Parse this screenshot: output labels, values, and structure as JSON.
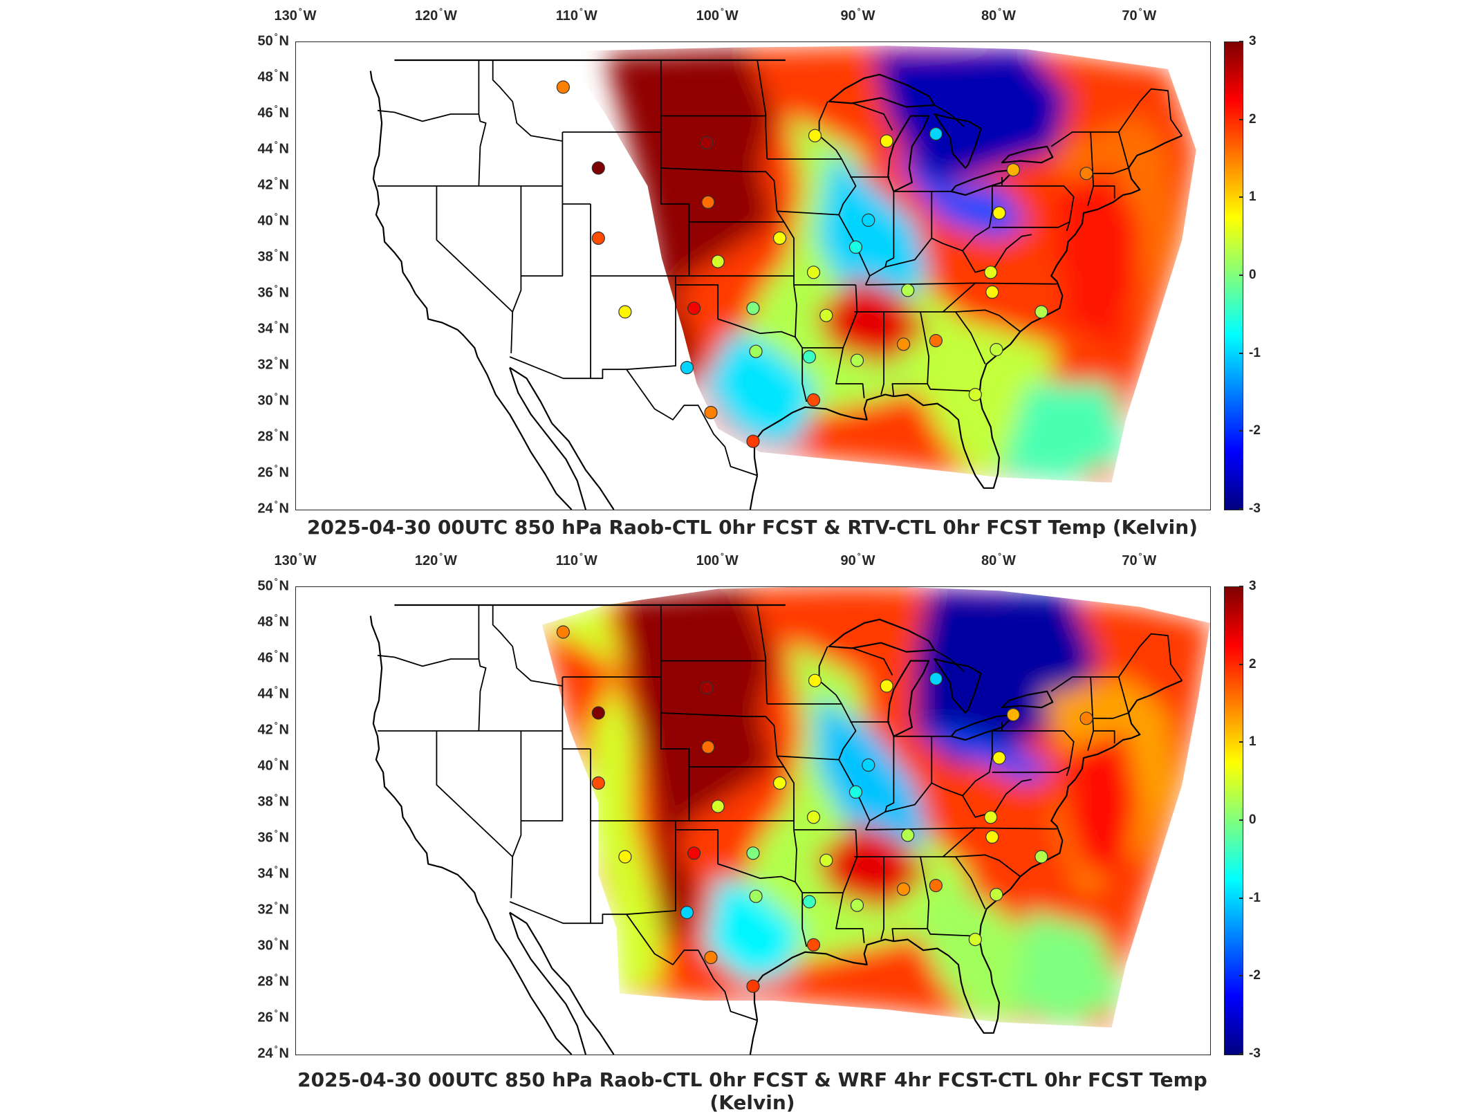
{
  "colors": {
    "jet": [
      "#00007f",
      "#0000ff",
      "#007fff",
      "#00ffff",
      "#7fff7f",
      "#ffff00",
      "#ff7f00",
      "#ff0000",
      "#7f0000"
    ],
    "outline": "#000000",
    "text": "#262626"
  },
  "axes": {
    "lon_ticks": [
      "130",
      "120",
      "110",
      "100",
      "90",
      "80",
      "70"
    ],
    "lon_suffix": "W",
    "lat_ticks": [
      "50",
      "48",
      "46",
      "44",
      "42",
      "40",
      "38",
      "36",
      "34",
      "32",
      "30",
      "28",
      "26",
      "24"
    ],
    "lat_suffix": "N",
    "lon_range": [
      -130,
      -65
    ],
    "lat_range": [
      24,
      50
    ]
  },
  "colorbar": {
    "ticks": [
      "3",
      "2",
      "1",
      "0",
      "-1",
      "-2",
      "-3"
    ],
    "range": [
      -3,
      3
    ],
    "colormap": "jet"
  },
  "panels": [
    {
      "id": "top",
      "title": "2025-04-30 00UTC 850 hPa Raob-CTL 0hr FCST & RTV-CTL 0hr FCST Temp (Kelvin)",
      "raob_stations": [
        {
          "lon": -111.0,
          "lat": 47.5,
          "v": 1.5
        },
        {
          "lon": -108.5,
          "lat": 43.0,
          "v": 3.0
        },
        {
          "lon": -108.5,
          "lat": 39.1,
          "v": 1.8
        },
        {
          "lon": -106.6,
          "lat": 35.0,
          "v": 0.8
        },
        {
          "lon": -101.7,
          "lat": 35.2,
          "v": 2.3
        },
        {
          "lon": -102.2,
          "lat": 31.9,
          "v": -1.0
        },
        {
          "lon": -100.5,
          "lat": 29.4,
          "v": 1.5
        },
        {
          "lon": -100.8,
          "lat": 44.4,
          "v": 2.8
        },
        {
          "lon": -100.7,
          "lat": 41.1,
          "v": 1.6
        },
        {
          "lon": -100.0,
          "lat": 37.8,
          "v": 0.5
        },
        {
          "lon": -97.5,
          "lat": 35.2,
          "v": 0.0
        },
        {
          "lon": -97.3,
          "lat": 32.8,
          "v": 0.2
        },
        {
          "lon": -97.5,
          "lat": 27.8,
          "v": 1.9
        },
        {
          "lon": -95.6,
          "lat": 39.1,
          "v": 0.7
        },
        {
          "lon": -93.2,
          "lat": 37.2,
          "v": 0.6
        },
        {
          "lon": -92.3,
          "lat": 34.8,
          "v": 0.5
        },
        {
          "lon": -93.5,
          "lat": 32.5,
          "v": -0.4
        },
        {
          "lon": -93.2,
          "lat": 30.1,
          "v": 1.8
        },
        {
          "lon": -93.1,
          "lat": 44.8,
          "v": 0.8
        },
        {
          "lon": -90.2,
          "lat": 38.6,
          "v": -0.6
        },
        {
          "lon": -89.3,
          "lat": 40.1,
          "v": -1.0
        },
        {
          "lon": -88.0,
          "lat": 44.5,
          "v": 0.8
        },
        {
          "lon": -84.5,
          "lat": 44.9,
          "v": -1.0
        },
        {
          "lon": -86.5,
          "lat": 36.2,
          "v": 0.3
        },
        {
          "lon": -90.1,
          "lat": 32.3,
          "v": 0.3
        },
        {
          "lon": -86.8,
          "lat": 33.2,
          "v": 1.4
        },
        {
          "lon": -84.5,
          "lat": 33.4,
          "v": 1.6
        },
        {
          "lon": -81.7,
          "lat": 30.4,
          "v": 0.5
        },
        {
          "lon": -80.2,
          "lat": 32.9,
          "v": 0.4
        },
        {
          "lon": -80.5,
          "lat": 36.1,
          "v": 0.8
        },
        {
          "lon": -80.0,
          "lat": 40.5,
          "v": 0.8
        },
        {
          "lon": -79.0,
          "lat": 42.9,
          "v": 1.2
        },
        {
          "lon": -73.8,
          "lat": 42.7,
          "v": 1.5
        },
        {
          "lon": -77.0,
          "lat": 35.0,
          "v": 0.3
        },
        {
          "lon": -80.6,
          "lat": 37.2,
          "v": 0.6
        }
      ]
    },
    {
      "id": "bottom",
      "title": "2025-04-30 00UTC 850 hPa Raob-CTL 0hr FCST & WRF 4hr FCST-CTL 0hr FCST Temp (Kelvin)",
      "raob_stations": [
        {
          "lon": -111.0,
          "lat": 47.5,
          "v": 1.5
        },
        {
          "lon": -108.5,
          "lat": 43.0,
          "v": 3.0
        },
        {
          "lon": -108.5,
          "lat": 39.1,
          "v": 1.8
        },
        {
          "lon": -106.6,
          "lat": 35.0,
          "v": 0.8
        },
        {
          "lon": -101.7,
          "lat": 35.2,
          "v": 2.3
        },
        {
          "lon": -102.2,
          "lat": 31.9,
          "v": -1.0
        },
        {
          "lon": -100.5,
          "lat": 29.4,
          "v": 1.5
        },
        {
          "lon": -100.8,
          "lat": 44.4,
          "v": 2.8
        },
        {
          "lon": -100.7,
          "lat": 41.1,
          "v": 1.6
        },
        {
          "lon": -100.0,
          "lat": 37.8,
          "v": 0.5
        },
        {
          "lon": -97.5,
          "lat": 35.2,
          "v": 0.0
        },
        {
          "lon": -97.3,
          "lat": 32.8,
          "v": 0.2
        },
        {
          "lon": -97.5,
          "lat": 27.8,
          "v": 1.9
        },
        {
          "lon": -95.6,
          "lat": 39.1,
          "v": 0.7
        },
        {
          "lon": -93.2,
          "lat": 37.2,
          "v": 0.6
        },
        {
          "lon": -92.3,
          "lat": 34.8,
          "v": 0.5
        },
        {
          "lon": -93.5,
          "lat": 32.5,
          "v": -0.4
        },
        {
          "lon": -93.2,
          "lat": 30.1,
          "v": 1.8
        },
        {
          "lon": -93.1,
          "lat": 44.8,
          "v": 0.8
        },
        {
          "lon": -90.2,
          "lat": 38.6,
          "v": -0.6
        },
        {
          "lon": -89.3,
          "lat": 40.1,
          "v": -1.0
        },
        {
          "lon": -88.0,
          "lat": 44.5,
          "v": 0.8
        },
        {
          "lon": -84.5,
          "lat": 44.9,
          "v": -1.0
        },
        {
          "lon": -86.5,
          "lat": 36.2,
          "v": 0.3
        },
        {
          "lon": -90.1,
          "lat": 32.3,
          "v": 0.3
        },
        {
          "lon": -86.8,
          "lat": 33.2,
          "v": 1.4
        },
        {
          "lon": -84.5,
          "lat": 33.4,
          "v": 1.6
        },
        {
          "lon": -81.7,
          "lat": 30.4,
          "v": 0.5
        },
        {
          "lon": -80.2,
          "lat": 32.9,
          "v": 0.4
        },
        {
          "lon": -80.5,
          "lat": 36.1,
          "v": 0.8
        },
        {
          "lon": -80.0,
          "lat": 40.5,
          "v": 0.8
        },
        {
          "lon": -79.0,
          "lat": 42.9,
          "v": 1.2
        },
        {
          "lon": -73.8,
          "lat": 42.7,
          "v": 1.5
        },
        {
          "lon": -77.0,
          "lat": 35.0,
          "v": 0.3
        },
        {
          "lon": -80.6,
          "lat": 37.2,
          "v": 0.6
        }
      ]
    }
  ]
}
